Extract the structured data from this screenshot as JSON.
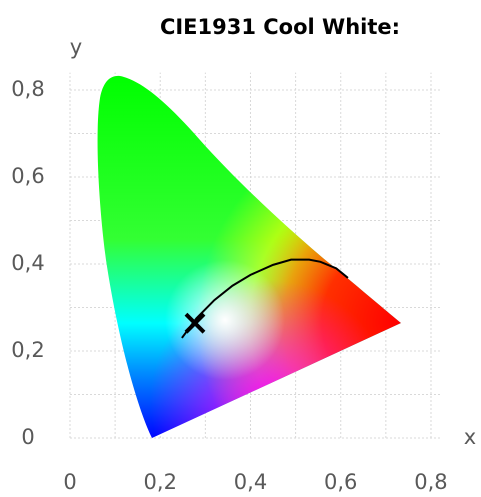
{
  "chart_data": {
    "type": "scatter",
    "title": "CIE1931 Cool White:",
    "xlabel": "x",
    "ylabel": "y",
    "xlim": [
      0,
      0.82
    ],
    "ylim": [
      0,
      0.84
    ],
    "xticks": [
      0,
      {
        "value": 0.2,
        "label": "0,2"
      },
      {
        "value": 0.4,
        "label": "0,4"
      },
      {
        "value": 0.6,
        "label": "0,6"
      },
      {
        "value": 0.8,
        "label": "0,8"
      }
    ],
    "yticks": [
      0,
      {
        "value": 0.2,
        "label": "0,2"
      },
      {
        "value": 0.4,
        "label": "0,4"
      },
      {
        "value": 0.6,
        "label": "0,6"
      },
      {
        "value": 0.8,
        "label": "0,8"
      }
    ],
    "minor_xticks": [
      0.1,
      0.3,
      0.5,
      0.7
    ],
    "minor_yticks": [
      0.1,
      0.3,
      0.5,
      0.7
    ],
    "grid": true,
    "series": [
      {
        "type": "line",
        "color": "#000000",
        "x": [
          0.248,
          0.28,
          0.32,
          0.36,
          0.4,
          0.45,
          0.49,
          0.53,
          0.555,
          0.59,
          0.616
        ],
        "values": [
          0.23,
          0.275,
          0.317,
          0.35,
          0.375,
          0.398,
          0.41,
          0.41,
          0.405,
          0.39,
          0.368
        ]
      },
      {
        "type": "cross",
        "color": "#000000",
        "x": [
          0.277
        ],
        "values": [
          0.264
        ]
      }
    ]
  }
}
